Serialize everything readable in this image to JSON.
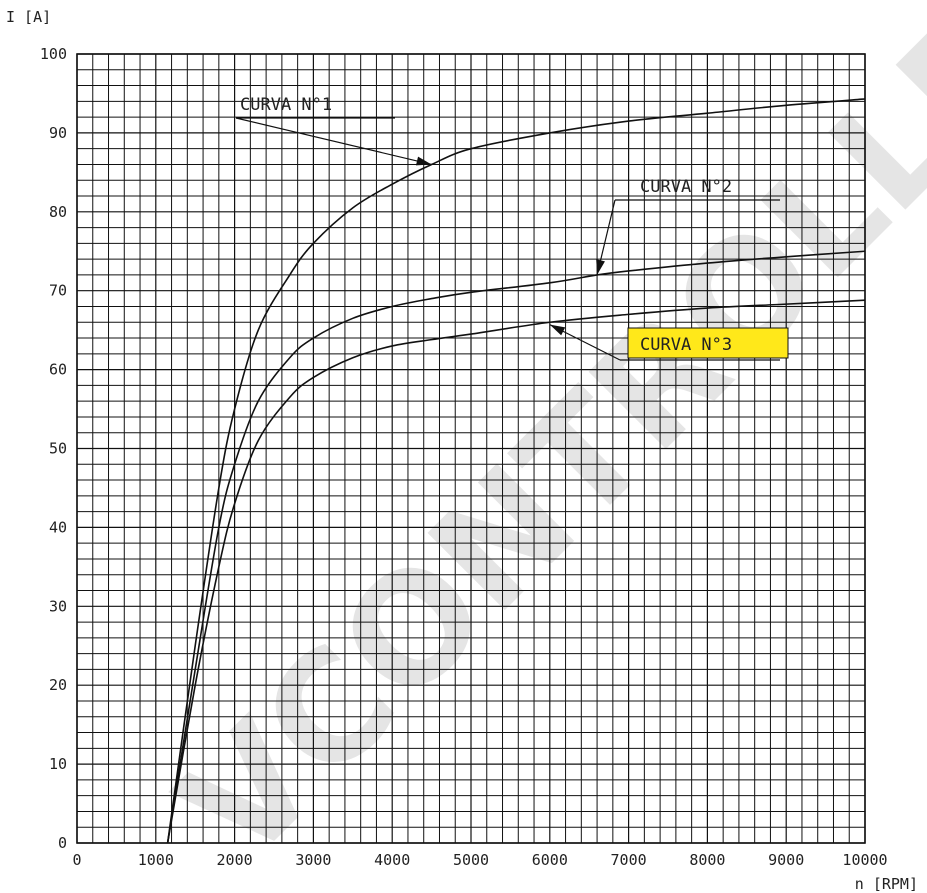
{
  "chart_data": {
    "type": "line",
    "xlabel": "n [RPM]",
    "ylabel": "I [A]",
    "xlim": [
      0,
      10000
    ],
    "ylim": [
      0,
      100
    ],
    "x_ticks": [
      "0",
      "1000",
      "2000",
      "3000",
      "4000",
      "5000",
      "6000",
      "7000",
      "8000",
      "9000",
      "10000"
    ],
    "y_ticks": [
      "0",
      "10",
      "20",
      "30",
      "40",
      "50",
      "60",
      "70",
      "80",
      "90",
      "100"
    ],
    "grid": true,
    "series": [
      {
        "name": "CURVA N°1",
        "x": [
          1150,
          1500,
          1800,
          2000,
          2300,
          2700,
          3000,
          3500,
          4000,
          4500,
          5000,
          6000,
          7000,
          8000,
          9000,
          10000
        ],
        "y": [
          0,
          25,
          45,
          55,
          65,
          72,
          76,
          80.5,
          83.5,
          86,
          88,
          90,
          91.5,
          92.5,
          93.5,
          94.3
        ]
      },
      {
        "name": "CURVA N°2",
        "x": [
          1150,
          1500,
          1800,
          2000,
          2300,
          2700,
          3000,
          3500,
          4000,
          4500,
          5000,
          6000,
          6600,
          7000,
          8000,
          9000,
          10000
        ],
        "y": [
          0,
          22,
          40,
          48,
          56,
          61.5,
          64,
          66.5,
          68,
          69,
          69.8,
          71,
          72,
          72.5,
          73.5,
          74.3,
          75
        ]
      },
      {
        "name": "CURVA N°3",
        "x": [
          1150,
          1500,
          1800,
          2000,
          2300,
          2700,
          3000,
          3500,
          4000,
          4500,
          5000,
          6000,
          7000,
          8000,
          9000,
          10000
        ],
        "y": [
          0,
          20,
          35,
          43,
          51,
          56.5,
          59,
          61.5,
          63,
          63.8,
          64.5,
          66,
          67,
          67.8,
          68.3,
          68.8
        ]
      }
    ],
    "annotations": [
      {
        "text": "CURVA N°1",
        "highlight": false
      },
      {
        "text": "CURVA N°2",
        "highlight": false
      },
      {
        "text": "CURVA N°3",
        "highlight": true,
        "highlight_color": "#ffe81a"
      }
    ],
    "watermark": "VCONTROLLED CO"
  }
}
